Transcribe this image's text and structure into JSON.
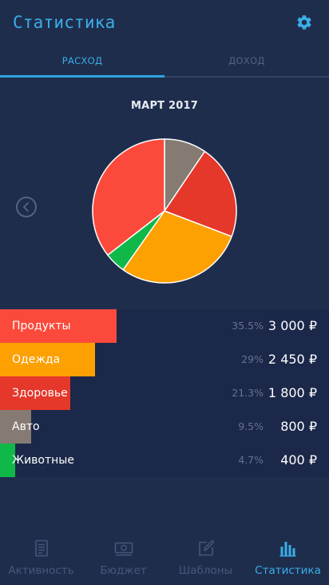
{
  "header": {
    "title": "Статистика",
    "settings_icon": "gear-icon"
  },
  "tabs": [
    {
      "label": "РАСХОД",
      "active": true
    },
    {
      "label": "ДОХОД",
      "active": false
    }
  ],
  "period": "МАРТ 2017",
  "chart_data": {
    "type": "pie",
    "title": "",
    "categories": [
      "Продукты",
      "Одежда",
      "Здоровье",
      "Авто",
      "Животные"
    ],
    "values": [
      3000,
      2450,
      1800,
      800,
      400
    ],
    "percentages": [
      35.5,
      29,
      21.3,
      9.5,
      4.7
    ],
    "colors": [
      "#fb4a3c",
      "#fda001",
      "#e5372a",
      "#857b73",
      "#10b749"
    ],
    "slice_order": [
      "Авто",
      "Здоровье",
      "Одежда",
      "Животные",
      "Продукты"
    ]
  },
  "categories": [
    {
      "name": "Продукты",
      "percent": "35.5%",
      "amount": "3 000 ₽",
      "color": "#fb4a3c",
      "share": 0.355
    },
    {
      "name": "Одежда",
      "percent": "29%",
      "amount": "2 450 ₽",
      "color": "#fda001",
      "share": 0.29
    },
    {
      "name": "Здоровье",
      "percent": "21.3%",
      "amount": "1 800 ₽",
      "color": "#e5372a",
      "share": 0.213
    },
    {
      "name": "Авто",
      "percent": "9.5%",
      "amount": "800 ₽",
      "color": "#857b73",
      "share": 0.095
    },
    {
      "name": "Животные",
      "percent": "4.7%",
      "amount": "400 ₽",
      "color": "#10b749",
      "share": 0.047
    }
  ],
  "nav": [
    {
      "label": "Активность",
      "icon": "document-icon",
      "active": false
    },
    {
      "label": "Бюджет",
      "icon": "money-icon",
      "active": false
    },
    {
      "label": "Шаблоны",
      "icon": "edit-icon",
      "active": false
    },
    {
      "label": "Статистика",
      "icon": "bar-chart-icon",
      "active": true
    }
  ],
  "colors": {
    "accent": "#3aaee6",
    "background": "#1f2d4d",
    "row_background": "#1b284a"
  }
}
